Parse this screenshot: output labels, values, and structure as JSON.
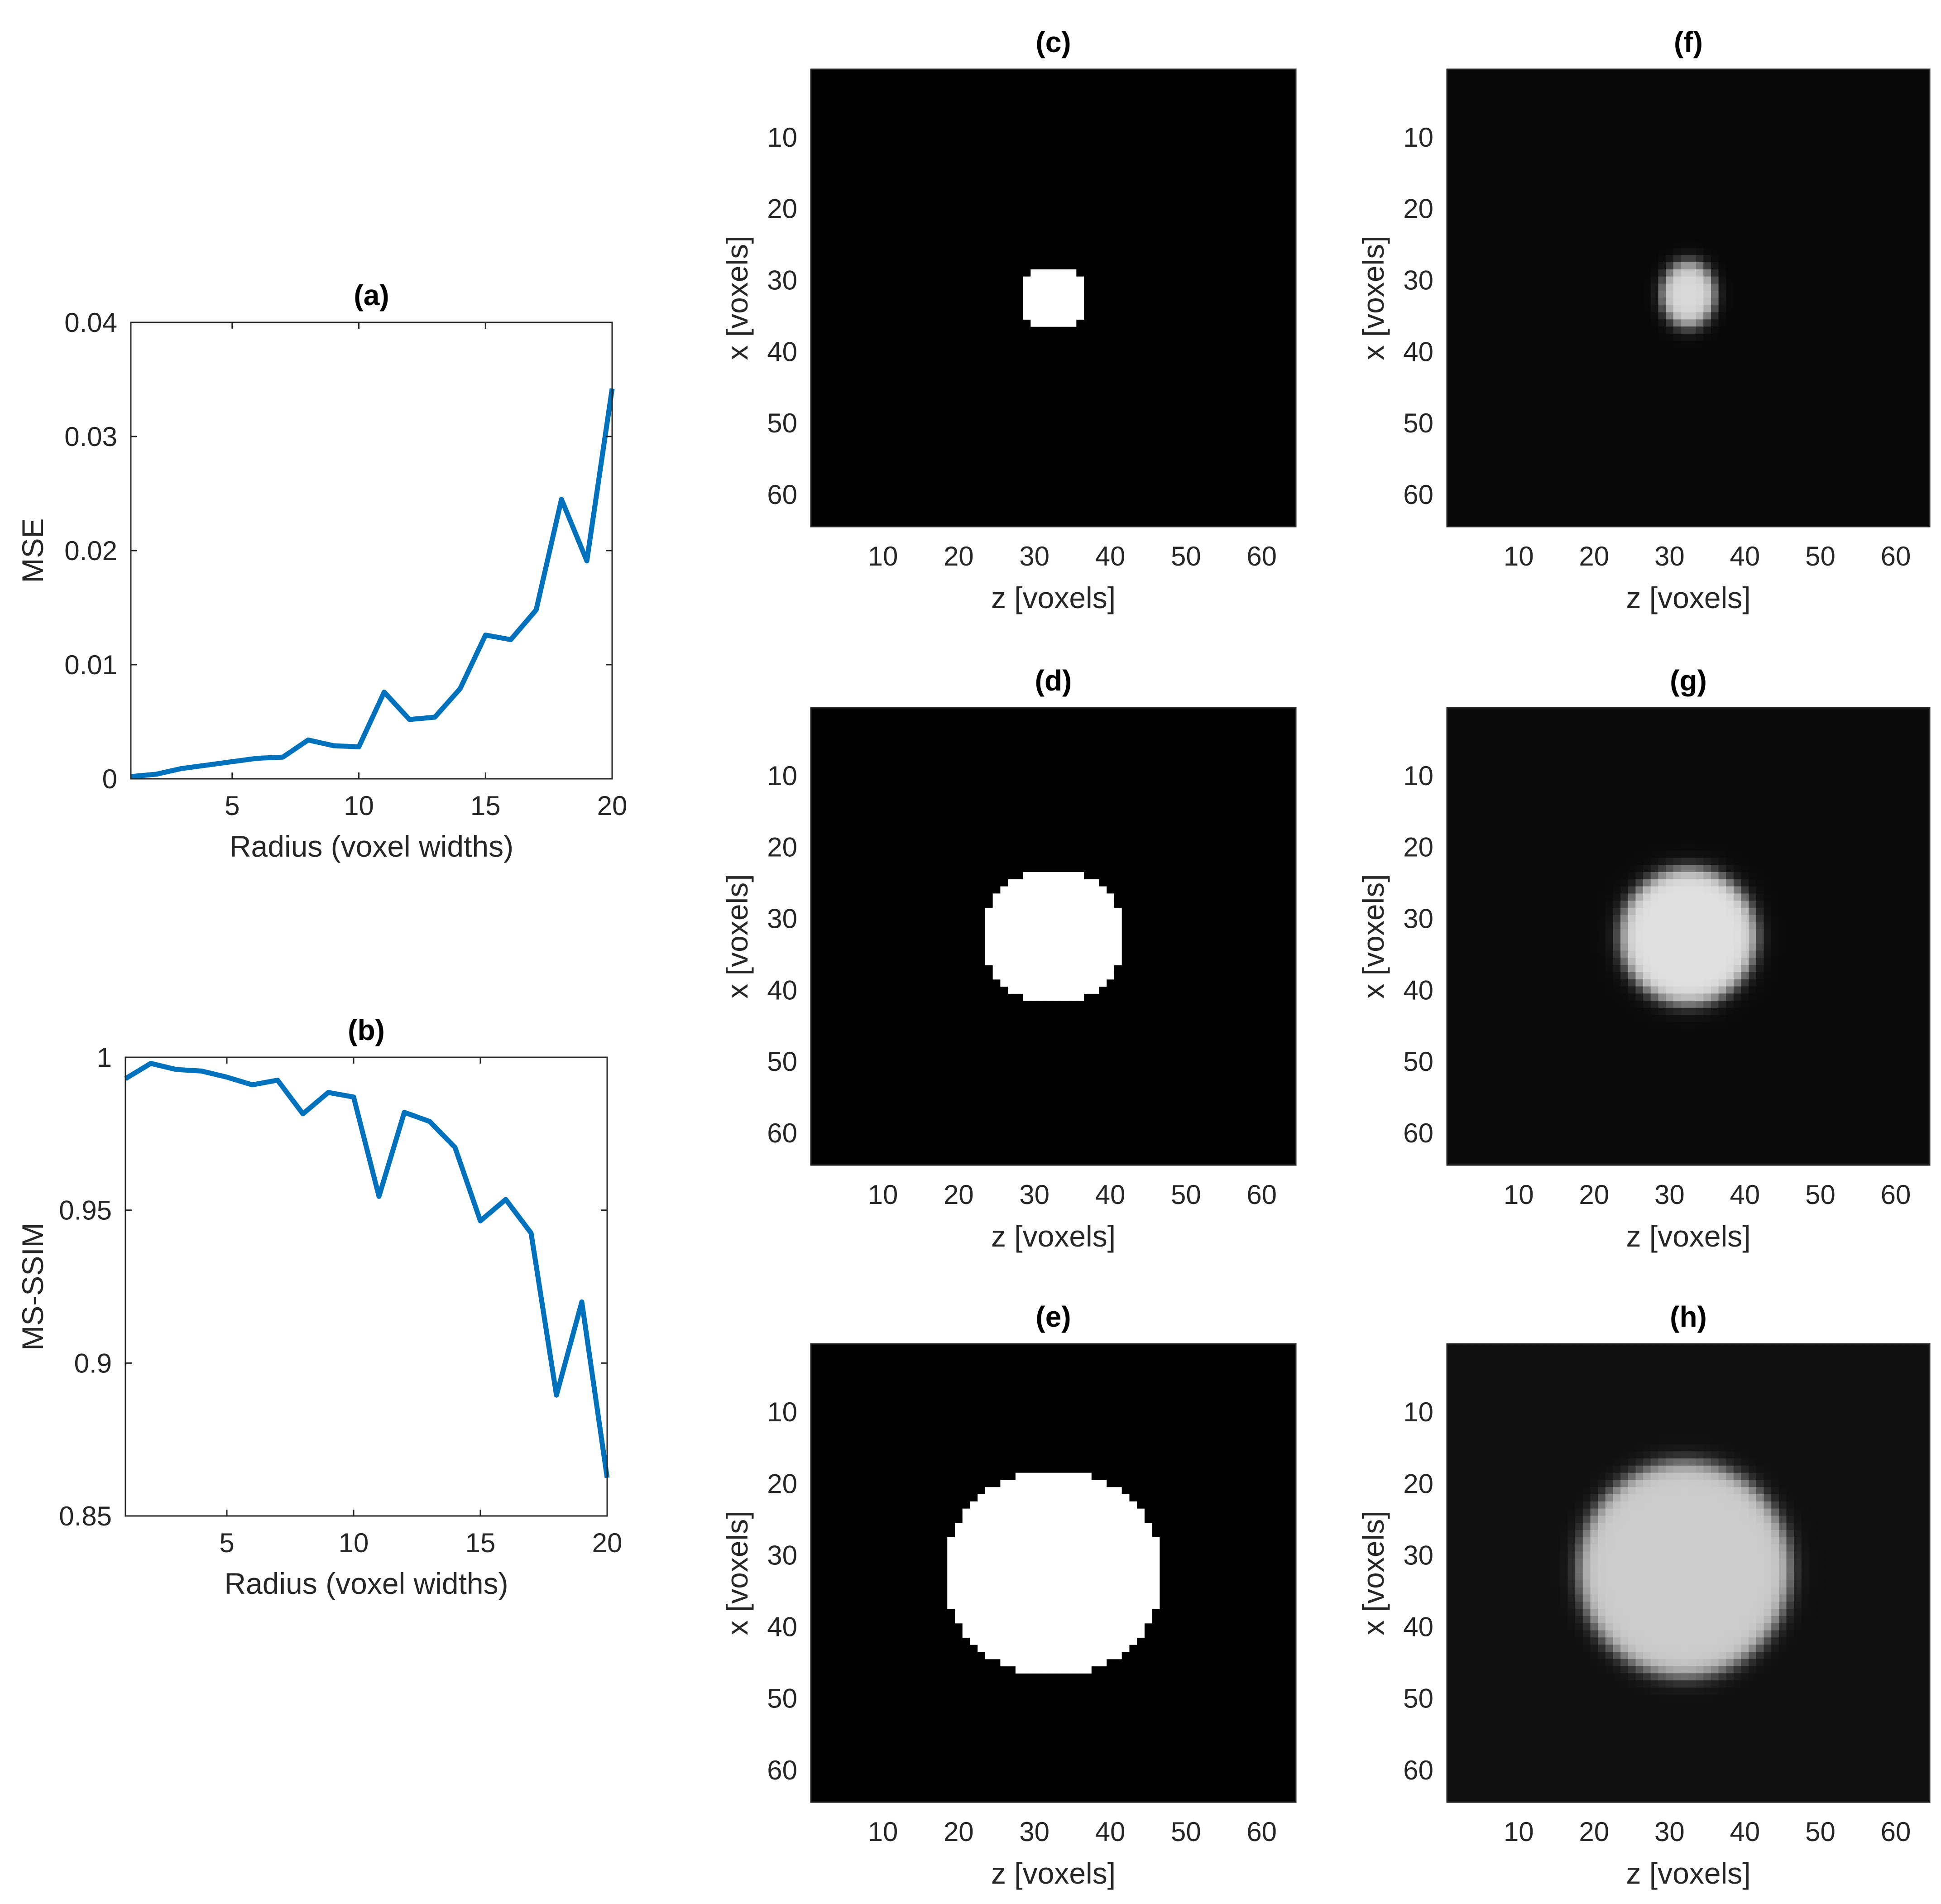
{
  "chart_data": [
    {
      "id": "a",
      "type": "line",
      "title": "(a)",
      "xlabel": "Radius (voxel widths)",
      "ylabel": "MSE",
      "xlim": [
        1,
        20
      ],
      "ylim": [
        0,
        0.04
      ],
      "xticks": [
        5,
        10,
        15,
        20
      ],
      "yticks": [
        0,
        0.01,
        0.02,
        0.03,
        0.04
      ],
      "xtick_labels": [
        "5",
        "10",
        "15",
        "20"
      ],
      "ytick_labels": [
        "0",
        "0.01",
        "0.02",
        "0.03",
        "0.04"
      ],
      "grid": false,
      "line_color": "#0072BD",
      "x": [
        1,
        2,
        3,
        4,
        5,
        6,
        7,
        8,
        9,
        10,
        11,
        12,
        13,
        14,
        15,
        16,
        17,
        18,
        19,
        20
      ],
      "y": [
        0.0002,
        0.0004,
        0.0009,
        0.0012,
        0.0015,
        0.0018,
        0.0019,
        0.0034,
        0.0029,
        0.0028,
        0.0076,
        0.0052,
        0.0054,
        0.0079,
        0.0126,
        0.0122,
        0.0148,
        0.0245,
        0.0191,
        0.0342
      ]
    },
    {
      "id": "b",
      "type": "line",
      "title": "(b)",
      "xlabel": "Radius (voxel widths)",
      "ylabel": "MS-SSIM",
      "xlim": [
        1,
        20
      ],
      "ylim": [
        0.85,
        1
      ],
      "xticks": [
        5,
        10,
        15,
        20
      ],
      "yticks": [
        0.85,
        0.9,
        0.95,
        1
      ],
      "xtick_labels": [
        "5",
        "10",
        "15",
        "20"
      ],
      "ytick_labels": [
        "0.85",
        "0.9",
        "0.95",
        "1"
      ],
      "grid": false,
      "line_color": "#0072BD",
      "x": [
        1,
        2,
        3,
        4,
        5,
        6,
        7,
        8,
        9,
        10,
        11,
        12,
        13,
        14,
        15,
        16,
        17,
        18,
        19,
        20
      ],
      "y": [
        0.993,
        0.998,
        0.996,
        0.9955,
        0.9935,
        0.991,
        0.9925,
        0.9815,
        0.9885,
        0.987,
        0.9545,
        0.982,
        0.979,
        0.9705,
        0.9465,
        0.9535,
        0.9425,
        0.8895,
        0.92,
        0.8625
      ]
    },
    {
      "id": "c",
      "type": "heatmap",
      "title": "(c)",
      "xlabel": "z [voxels]",
      "ylabel": "x [voxels]",
      "xlim": [
        1,
        64
      ],
      "ylim": [
        1,
        64
      ],
      "xticks": [
        10,
        20,
        30,
        40,
        50,
        60
      ],
      "yticks": [
        10,
        20,
        30,
        40,
        50,
        60
      ],
      "xtick_labels": [
        "10",
        "20",
        "30",
        "40",
        "50",
        "60"
      ],
      "ytick_labels": [
        "10",
        "20",
        "30",
        "40",
        "50",
        "60"
      ],
      "colormap": "gray",
      "background": 0,
      "shape": "disk",
      "center": [
        32.5,
        32.5
      ],
      "radius": 4.5,
      "intensity": 1.0,
      "blur": 0
    },
    {
      "id": "d",
      "type": "heatmap",
      "title": "(d)",
      "xlabel": "z [voxels]",
      "ylabel": "x [voxels]",
      "xlim": [
        1,
        64
      ],
      "ylim": [
        1,
        64
      ],
      "xticks": [
        10,
        20,
        30,
        40,
        50,
        60
      ],
      "yticks": [
        10,
        20,
        30,
        40,
        50,
        60
      ],
      "xtick_labels": [
        "10",
        "20",
        "30",
        "40",
        "50",
        "60"
      ],
      "ytick_labels": [
        "10",
        "20",
        "30",
        "40",
        "50",
        "60"
      ],
      "colormap": "gray",
      "background": 0,
      "shape": "disk",
      "center": [
        32.5,
        32.5
      ],
      "radius": 9.5,
      "intensity": 1.0,
      "blur": 0
    },
    {
      "id": "e",
      "type": "heatmap",
      "title": "(e)",
      "xlabel": "z [voxels]",
      "ylabel": "x [voxels]",
      "xlim": [
        1,
        64
      ],
      "ylim": [
        1,
        64
      ],
      "xticks": [
        10,
        20,
        30,
        40,
        50,
        60
      ],
      "yticks": [
        10,
        20,
        30,
        40,
        50,
        60
      ],
      "xtick_labels": [
        "10",
        "20",
        "30",
        "40",
        "50",
        "60"
      ],
      "ytick_labels": [
        "10",
        "20",
        "30",
        "40",
        "50",
        "60"
      ],
      "colormap": "gray",
      "background": 0,
      "shape": "disk",
      "center": [
        32.5,
        32.5
      ],
      "radius": 14.5,
      "intensity": 1.0,
      "blur": 0
    },
    {
      "id": "f",
      "type": "heatmap",
      "title": "(f)",
      "xlabel": "z [voxels]",
      "ylabel": "x [voxels]",
      "xlim": [
        1,
        64
      ],
      "ylim": [
        1,
        64
      ],
      "xticks": [
        10,
        20,
        30,
        40,
        50,
        60
      ],
      "yticks": [
        10,
        20,
        30,
        40,
        50,
        60
      ],
      "xtick_labels": [
        "10",
        "20",
        "30",
        "40",
        "50",
        "60"
      ],
      "ytick_labels": [
        "10",
        "20",
        "30",
        "40",
        "50",
        "60"
      ],
      "colormap": "gray",
      "background": 0.03,
      "shape": "blurred-disk",
      "center": [
        32.5,
        32
      ],
      "radius_z": 3.5,
      "radius_x": 4.5,
      "intensity": 0.85,
      "blur": 0.7
    },
    {
      "id": "g",
      "type": "heatmap",
      "title": "(g)",
      "xlabel": "z [voxels]",
      "ylabel": "x [voxels]",
      "xlim": [
        1,
        64
      ],
      "ylim": [
        1,
        64
      ],
      "xticks": [
        10,
        20,
        30,
        40,
        50,
        60
      ],
      "yticks": [
        10,
        20,
        30,
        40,
        50,
        60
      ],
      "xtick_labels": [
        "10",
        "20",
        "30",
        "40",
        "50",
        "60"
      ],
      "ytick_labels": [
        "10",
        "20",
        "30",
        "40",
        "50",
        "60"
      ],
      "colormap": "gray",
      "background": 0.04,
      "shape": "blurred-disk",
      "center": [
        32.5,
        32.5
      ],
      "radius_z": 9,
      "radius_x": 9.5,
      "intensity": 0.88,
      "blur": 0.9
    },
    {
      "id": "h",
      "type": "heatmap",
      "title": "(h)",
      "xlabel": "z [voxels]",
      "ylabel": "x [voxels]",
      "xlim": [
        1,
        64
      ],
      "ylim": [
        1,
        64
      ],
      "xticks": [
        10,
        20,
        30,
        40,
        50,
        60
      ],
      "yticks": [
        10,
        20,
        30,
        40,
        50,
        60
      ],
      "xtick_labels": [
        "10",
        "20",
        "30",
        "40",
        "50",
        "60"
      ],
      "ytick_labels": [
        "10",
        "20",
        "30",
        "40",
        "50",
        "60"
      ],
      "colormap": "gray",
      "background": 0.06,
      "shape": "blurred-disk",
      "center": [
        32,
        32
      ],
      "radius_z": 14,
      "radius_x": 15,
      "intensity": 0.8,
      "blur": 1.0
    }
  ]
}
